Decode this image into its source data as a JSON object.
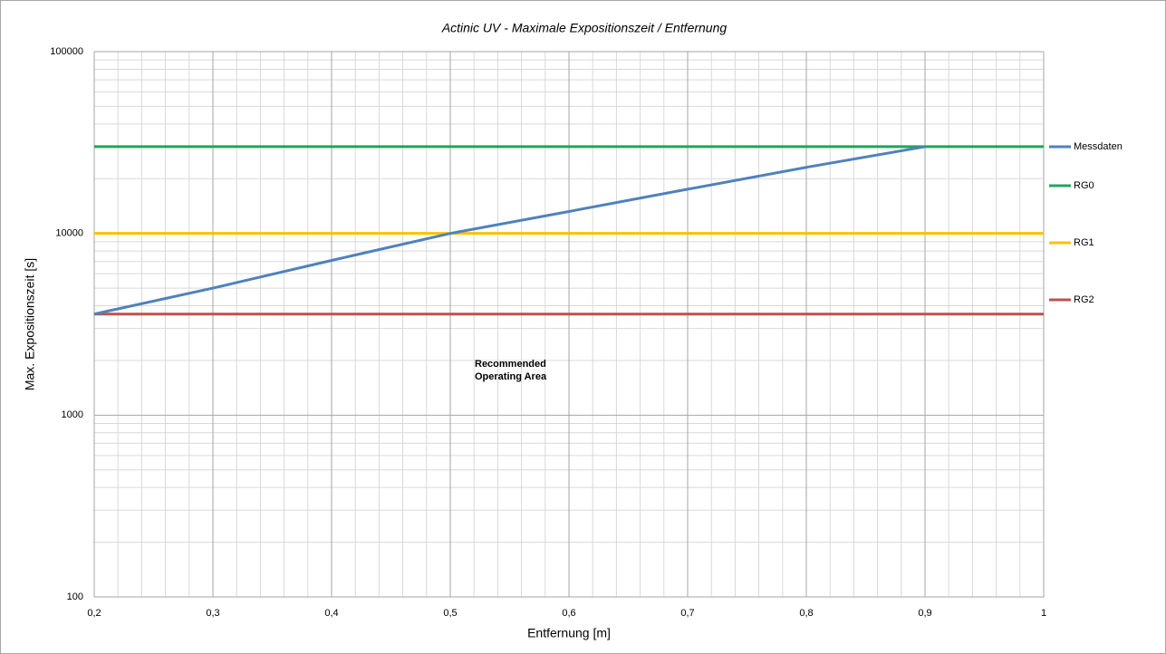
{
  "chart_data": {
    "type": "line",
    "title": "Actinic UV - Maximale Expositionszeit / Entfernung",
    "x_label": "Entfernung [m]",
    "y_label": "Max. Expositionszeit [s]",
    "x": [
      0.2,
      0.3,
      0.4,
      0.5,
      0.6,
      0.7,
      0.8,
      0.9,
      1.0
    ],
    "series": [
      {
        "name": "Messdaten",
        "color": "#4f81bd",
        "values": [
          3600,
          5000,
          7100,
          10000,
          13200,
          17500,
          23100,
          30000,
          null
        ]
      },
      {
        "name": "RG0",
        "color": "#1fa65a",
        "values": [
          30000,
          30000,
          30000,
          30000,
          30000,
          30000,
          30000,
          30000,
          30000
        ]
      },
      {
        "name": "RG1",
        "color": "#ffc000",
        "values": [
          10000,
          10000,
          10000,
          10000,
          10000,
          10000,
          10000,
          10000,
          10000
        ]
      },
      {
        "name": "RG2",
        "color": "#c0504d",
        "values": [
          3600,
          3600,
          3600,
          3600,
          3600,
          3600,
          3600,
          3600,
          3600
        ]
      }
    ],
    "annotation": [
      "Recommended",
      "Operating Area"
    ],
    "xlim": [
      0.2,
      1.0
    ],
    "xticks": [
      {
        "value": 0.2,
        "label": "0,2"
      },
      {
        "value": 0.3,
        "label": "0,3"
      },
      {
        "value": 0.4,
        "label": "0,4"
      },
      {
        "value": 0.5,
        "label": "0,5"
      },
      {
        "value": 0.6,
        "label": "0,6"
      },
      {
        "value": 0.7,
        "label": "0,7"
      },
      {
        "value": 0.8,
        "label": "0,8"
      },
      {
        "value": 0.9,
        "label": "0,9"
      },
      1
    ],
    "ylim": [
      100,
      100000
    ],
    "yticks": [
      100,
      1000,
      10000,
      100000
    ],
    "y_scale": "log",
    "grid": true,
    "minor_grid": true,
    "legend": "right"
  }
}
